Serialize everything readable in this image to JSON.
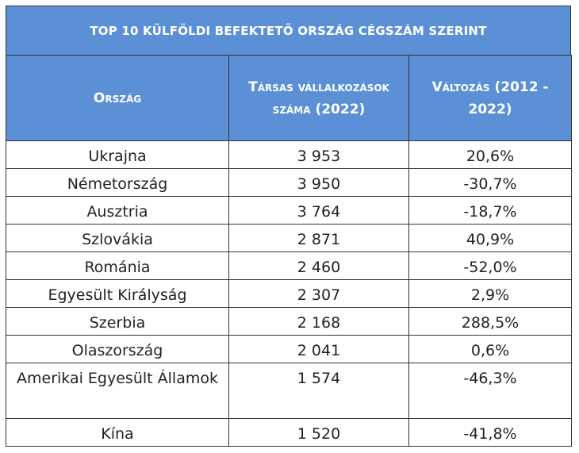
{
  "title": "TOP 10 KÜLFÖLDI BEFEKTETŐ ORSZÁG CÉGSZÁM SZERINT",
  "headers": {
    "country": "Ország",
    "companies": "Társas vállalkozások száma (2022)",
    "change": "Változás (2012 - 2022)"
  },
  "rows": [
    {
      "country": "Ukrajna",
      "companies": "3 953",
      "change": "20,6%"
    },
    {
      "country": "Németország",
      "companies": "3 950",
      "change": "-30,7%"
    },
    {
      "country": "Ausztria",
      "companies": "3 764",
      "change": "-18,7%"
    },
    {
      "country": "Szlovákia",
      "companies": "2 871",
      "change": "40,9%"
    },
    {
      "country": "Románia",
      "companies": "2 460",
      "change": "-52,0%"
    },
    {
      "country": "Egyesült Királyság",
      "companies": "2 307",
      "change": "2,9%"
    },
    {
      "country": "Szerbia",
      "companies": "2 168",
      "change": "288,5%"
    },
    {
      "country": "Olaszország",
      "companies": "2 041",
      "change": "0,6%"
    },
    {
      "country": "Amerikai Egyesült Államok",
      "companies": "1 574",
      "change": "-46,3%"
    },
    {
      "country": "Kína",
      "companies": "1 520",
      "change": "-41,8%"
    }
  ],
  "colors": {
    "header_bg": "#5b8fd6",
    "header_text": "#ffffff",
    "border": "#333333"
  }
}
